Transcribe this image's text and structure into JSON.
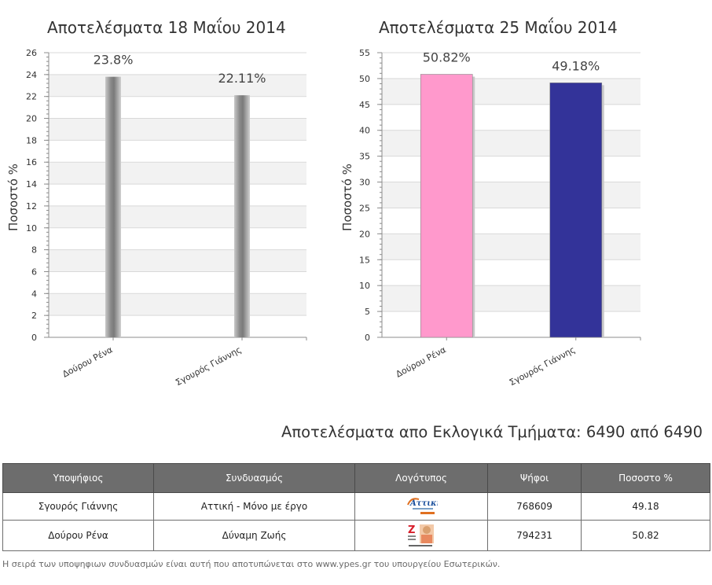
{
  "chart_data": [
    {
      "type": "bar",
      "title": "Αποτελέσματα 18 Μαΐου 2014",
      "ylabel": "Ποσοστό %",
      "categories": [
        "Δούρου Ρένα",
        "Σγουρός Γιάννης"
      ],
      "values": [
        23.8,
        22.11
      ],
      "data_labels": [
        "23.8%",
        "22.11%"
      ],
      "ylim": [
        0,
        26
      ],
      "yticks": [
        0,
        2,
        4,
        6,
        8,
        10,
        12,
        14,
        16,
        18,
        20,
        22,
        24,
        26
      ],
      "colors": [
        "#9a9a9a",
        "#9a9a9a"
      ],
      "grid": true
    },
    {
      "type": "bar",
      "title": "Αποτελέσματα 25 Μαΐου 2014",
      "ylabel": "Ποσοστό %",
      "categories": [
        "Δούρου Ρένα",
        "Σγουρός Γιάννης"
      ],
      "values": [
        50.82,
        49.18
      ],
      "data_labels": [
        "50.82%",
        "49.18%"
      ],
      "ylim": [
        0,
        55
      ],
      "yticks": [
        0,
        5,
        10,
        15,
        20,
        25,
        30,
        35,
        40,
        45,
        50,
        55
      ],
      "colors": [
        "#ff99cc",
        "#333399"
      ],
      "grid": true
    }
  ],
  "results_heading": "Αποτελέσματα απο Εκλογικά Τμήματα: 6490 από 6490",
  "table": {
    "headers": [
      "Υποψήφιος",
      "Συνδυασμός",
      "Λογότυπος",
      "Ψήφοι",
      "Ποσοστο %"
    ],
    "rows": [
      {
        "candidate": "Σγουρός Γιάννης",
        "party": "Αττική - Μόνο με έργο",
        "logo_icon": "attiki-logo-icon",
        "logo_text": "Αττική",
        "votes": "768609",
        "percent": "49.18"
      },
      {
        "candidate": "Δούρου Ρένα",
        "party": "Δύναμη Ζωής",
        "logo_icon": "dynami-zois-logo-icon",
        "logo_text": "Z",
        "votes": "794231",
        "percent": "50.82"
      }
    ]
  },
  "footnote": "Η σειρά των υποψηφιων συνδυασμών είναι αυτή που αποτυπώνεται στο www.ypes.gr του υπουργείου Εσωτερικών.",
  "colors": {
    "table_header": "#6d6d6d",
    "grid_band": "#f2f2f2",
    "pink_bar": "#ff99cc",
    "blue_bar": "#333399"
  }
}
